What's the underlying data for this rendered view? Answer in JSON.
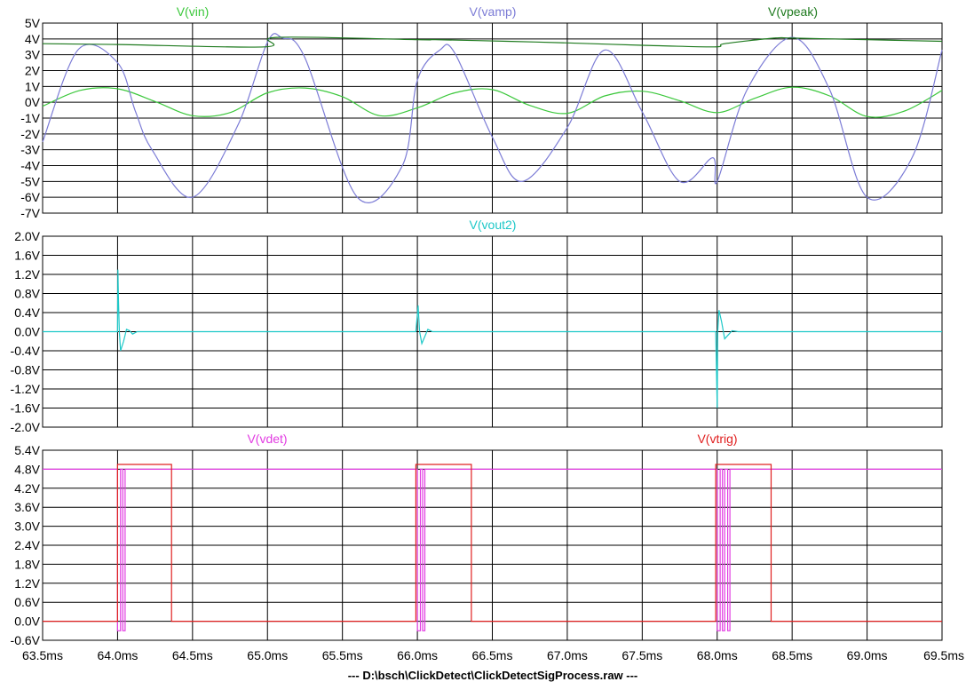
{
  "footer_path": "---  D:\\bsch\\ClickDetect\\ClickDetectSigProcess.raw  ---",
  "x_axis": {
    "unit": "ms",
    "range": [
      63.5,
      69.5
    ],
    "tick_labels": [
      "63.5ms",
      "64.0ms",
      "64.5ms",
      "65.0ms",
      "65.5ms",
      "66.0ms",
      "66.5ms",
      "67.0ms",
      "67.5ms",
      "68.0ms",
      "68.5ms",
      "69.0ms",
      "69.5ms"
    ]
  },
  "colors": {
    "vin": "#3cc83c",
    "vamp": "#7c7cd6",
    "vpeak": "#1e7a1e",
    "vout2": "#1ec8c8",
    "vdet": "#e23ce2",
    "vtrig": "#e02020",
    "grid": "#000000",
    "background": "#ffffff"
  },
  "chart_data": [
    {
      "type": "line",
      "pane": "top",
      "yunit": "V",
      "ylim": [
        -7,
        5
      ],
      "y_tick_labels": [
        "5V",
        "4V",
        "3V",
        "2V",
        "1V",
        "0V",
        "-1V",
        "-2V",
        "-3V",
        "-4V",
        "-5V",
        "-6V",
        "-7V"
      ],
      "grid": true,
      "series": [
        {
          "name": "V(vin)",
          "label": "V(vin)",
          "color_key": "vin",
          "x": [
            63.5,
            63.75,
            64.0,
            64.25,
            64.5,
            64.75,
            65.0,
            65.25,
            65.5,
            65.75,
            66.0,
            66.25,
            66.5,
            66.75,
            67.0,
            67.25,
            67.5,
            67.75,
            68.0,
            68.25,
            68.5,
            68.75,
            69.0,
            69.25,
            69.5
          ],
          "y": [
            -0.25,
            0.75,
            0.85,
            0.05,
            -0.85,
            -0.65,
            0.6,
            0.9,
            0.35,
            -0.85,
            -0.35,
            0.6,
            0.8,
            -0.2,
            -0.7,
            0.4,
            0.7,
            0.1,
            -0.65,
            0.25,
            0.95,
            0.4,
            -0.9,
            -0.55,
            0.75
          ]
        },
        {
          "name": "V(vamp)",
          "label": "V(vamp)",
          "color_key": "vamp",
          "x": [
            63.5,
            63.74,
            64.0,
            64.12,
            64.23,
            64.5,
            64.8,
            65.0,
            65.1,
            65.25,
            65.6,
            65.9,
            66.0,
            66.15,
            66.25,
            66.5,
            66.7,
            67.0,
            67.25,
            67.5,
            67.75,
            67.97,
            68.0,
            68.2,
            68.5,
            68.75,
            69.0,
            69.3,
            69.5
          ],
          "y": [
            -2.5,
            3.35,
            2.5,
            -0.6,
            -3.0,
            -6.0,
            -1.5,
            3.8,
            4.05,
            2.8,
            -6.0,
            -4.0,
            1.4,
            3.3,
            3.1,
            -2.2,
            -5.0,
            -1.6,
            3.3,
            -0.6,
            -5.0,
            -3.5,
            -5.0,
            0.8,
            4.1,
            0.8,
            -6.0,
            -3.5,
            3.3
          ]
        },
        {
          "name": "V(vpeak)",
          "label": "V(vpeak)",
          "color_key": "vpeak",
          "x": [
            63.5,
            64.0,
            64.98,
            65.06,
            66.0,
            66.12,
            66.6,
            67.0,
            67.5,
            67.98,
            68.05,
            68.38,
            68.5,
            69.0,
            69.5
          ],
          "y": [
            3.7,
            3.65,
            3.5,
            4.1,
            3.95,
            3.95,
            3.85,
            3.75,
            3.6,
            3.5,
            3.7,
            4.05,
            4.05,
            3.95,
            3.85
          ]
        }
      ]
    },
    {
      "type": "line",
      "pane": "middle",
      "yunit": "V",
      "ylim": [
        -2.0,
        2.0
      ],
      "y_tick_labels": [
        "2.0V",
        "1.6V",
        "1.2V",
        "0.8V",
        "0.4V",
        "0.0V",
        "-0.4V",
        "-0.8V",
        "-1.2V",
        "-1.6V",
        "-2.0V"
      ],
      "grid": true,
      "series": [
        {
          "name": "V(vout2)",
          "label": "V(vout2)",
          "color_key": "vout2",
          "x": [
            63.5,
            64.0,
            64.002,
            64.006,
            64.012,
            64.02,
            64.04,
            64.06,
            64.08,
            64.1,
            64.13,
            64.18,
            65.99,
            66.005,
            66.015,
            66.03,
            66.05,
            66.07,
            66.1,
            66.14,
            66.18,
            67.99,
            68.0,
            68.004,
            68.012,
            68.03,
            68.05,
            68.07,
            68.1,
            68.14,
            68.18,
            69.5
          ],
          "y": [
            0.0,
            0.0,
            1.3,
            0.7,
            0.0,
            -0.4,
            -0.2,
            0.05,
            0.02,
            -0.05,
            0.0,
            0.0,
            0.0,
            0.55,
            0.0,
            -0.25,
            -0.1,
            0.05,
            0.0,
            0.0,
            0.0,
            0.0,
            -1.6,
            0.0,
            0.45,
            0.2,
            -0.15,
            -0.08,
            0.02,
            0.0,
            0.0,
            0.0
          ]
        }
      ]
    },
    {
      "type": "line",
      "pane": "bottom",
      "yunit": "V",
      "ylim": [
        -0.6,
        5.4
      ],
      "y_tick_labels": [
        "5.4V",
        "4.8V",
        "4.2V",
        "3.6V",
        "3.0V",
        "2.4V",
        "1.8V",
        "1.2V",
        "0.6V",
        "0.0V",
        "-0.6V",
        "-0.6V"
      ],
      "grid": true,
      "series": [
        {
          "name": "V(vdet)",
          "label": "V(vdet)",
          "color_key": "vdet",
          "baseline": 4.8,
          "pulses": [
            [
              64.0,
              64.02
            ],
            [
              64.035,
              64.05
            ],
            [
              66.0,
              66.02
            ],
            [
              66.035,
              66.05
            ],
            [
              68.0,
              68.02
            ],
            [
              68.035,
              68.05
            ],
            [
              68.07,
              68.085
            ]
          ],
          "low": -0.3
        },
        {
          "name": "V(vtrig)",
          "label": "V(vtrig)",
          "color_key": "vtrig",
          "x": [
            63.5,
            64.0,
            64.0,
            64.36,
            64.36,
            65.99,
            65.99,
            66.36,
            66.36,
            67.99,
            67.99,
            68.36,
            68.36,
            69.5
          ],
          "y": [
            0.0,
            0.0,
            4.95,
            4.95,
            0.0,
            0.0,
            4.95,
            4.95,
            0.0,
            0.0,
            4.95,
            4.95,
            0.0,
            0.0
          ]
        }
      ]
    }
  ]
}
